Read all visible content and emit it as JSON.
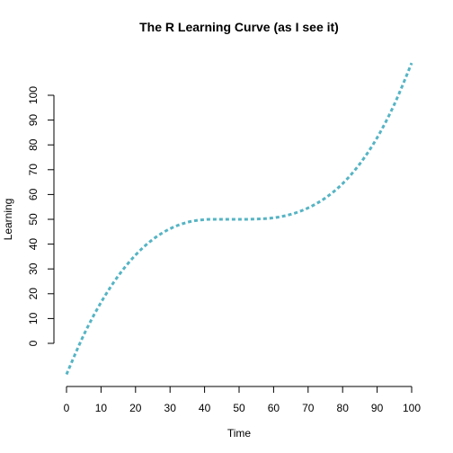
{
  "chart_data": {
    "type": "line",
    "title": "The R Learning Curve (as I see it)",
    "xlabel": "Time",
    "ylabel": "Learning",
    "xlim": [
      0,
      100
    ],
    "ylim": [
      -13,
      113
    ],
    "x_ticks": [
      0,
      10,
      20,
      30,
      40,
      50,
      60,
      70,
      80,
      90,
      100
    ],
    "y_ticks": [
      0,
      10,
      20,
      30,
      40,
      50,
      60,
      70,
      80,
      90,
      100
    ],
    "grid": false,
    "legend": "none",
    "series": [
      {
        "color": "#56B4C4",
        "line_style": "dashed",
        "x": [
          0,
          5,
          10,
          15,
          20,
          25,
          30,
          35,
          40,
          45,
          50,
          55,
          60,
          65,
          70,
          75,
          80,
          85,
          90,
          95,
          100
        ],
        "y": [
          -12.5,
          3.4,
          16.5,
          27.2,
          35.6,
          41.9,
          46.2,
          48.8,
          49.9,
          50.0,
          50.0,
          50.1,
          50.6,
          52.0,
          54.6,
          58.6,
          64.4,
          72.4,
          82.9,
          96.4,
          113.0
        ]
      }
    ]
  }
}
